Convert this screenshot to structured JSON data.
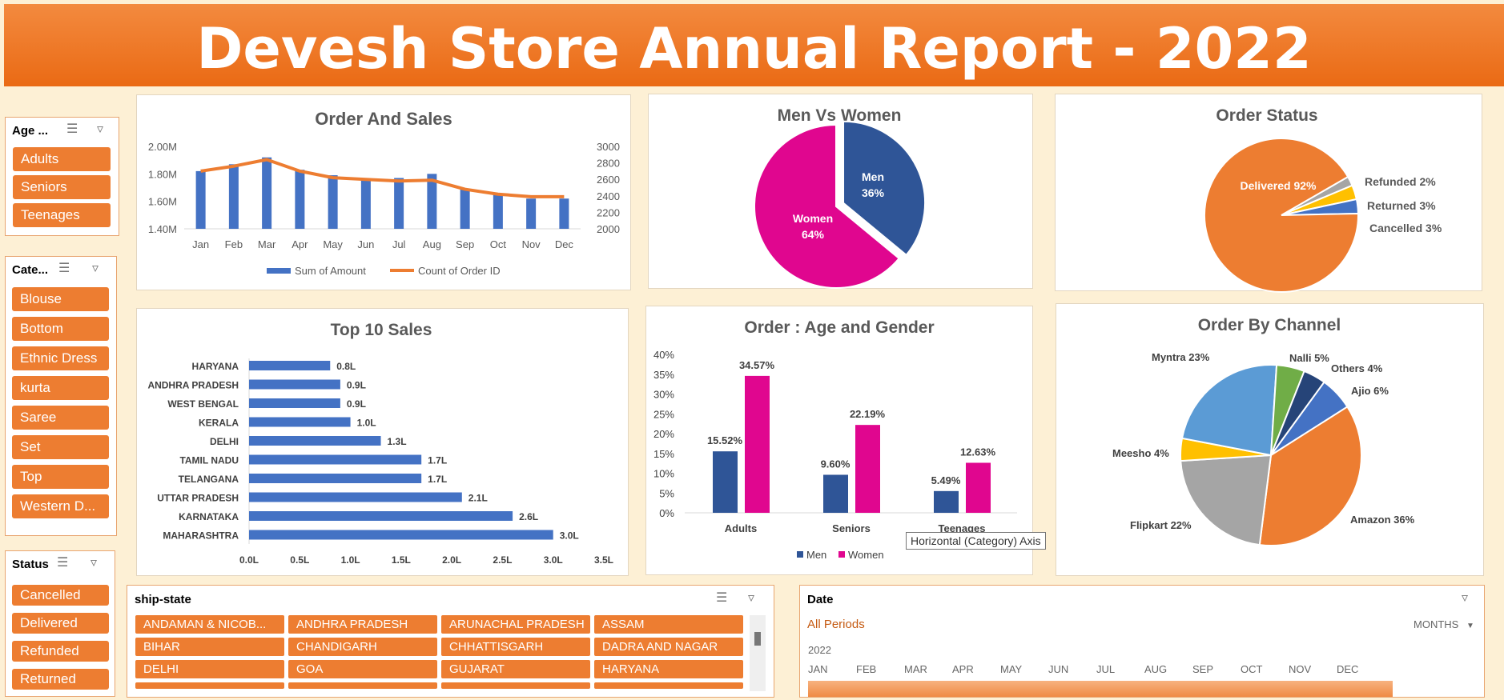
{
  "header": {
    "title": "Devesh Store Annual Report - 2022"
  },
  "slicers": {
    "age": {
      "title": "Age ...",
      "items": [
        "Adults",
        "Seniors",
        "Teenages"
      ]
    },
    "category": {
      "title": "Cate...",
      "items": [
        "Blouse",
        "Bottom",
        "Ethnic Dress",
        "kurta",
        "Saree",
        "Set",
        "Top",
        "Western D..."
      ]
    },
    "status": {
      "title": "Status",
      "items": [
        "Cancelled",
        "Delivered",
        "Refunded",
        "Returned"
      ]
    },
    "ship_state": {
      "title": "ship-state",
      "items": [
        "ANDAMAN & NICOB...",
        "ANDHRA PRADESH",
        "ARUNACHAL PRADESH",
        "ASSAM",
        "BIHAR",
        "CHANDIGARH",
        "CHHATTISGARH",
        "DADRA AND NAGAR",
        "DELHI",
        "GOA",
        "GUJARAT",
        "HARYANA"
      ]
    },
    "date": {
      "title": "Date",
      "periods": "All Periods",
      "level": "MONTHS",
      "year": "2022",
      "months": [
        "JAN",
        "FEB",
        "MAR",
        "APR",
        "MAY",
        "JUN",
        "JUL",
        "AUG",
        "SEP",
        "OCT",
        "NOV",
        "DEC"
      ]
    }
  },
  "tooltip": "Horizontal (Category) Axis",
  "chart_data": [
    {
      "type": "bar",
      "title": "Order And Sales",
      "categories": [
        "Jan",
        "Feb",
        "Mar",
        "Apr",
        "May",
        "Jun",
        "Jul",
        "Aug",
        "Sep",
        "Oct",
        "Nov",
        "Dec"
      ],
      "series": [
        {
          "name": "Sum of Amount",
          "type": "bar",
          "axis": "left",
          "values": [
            1820000,
            1870000,
            1920000,
            1830000,
            1790000,
            1760000,
            1770000,
            1800000,
            1690000,
            1650000,
            1620000,
            1620000
          ]
        },
        {
          "name": "Count of Order ID",
          "type": "line",
          "axis": "right",
          "values": [
            2700,
            2760,
            2840,
            2700,
            2620,
            2600,
            2580,
            2590,
            2480,
            2420,
            2390,
            2390
          ]
        }
      ],
      "yleft": {
        "ticks": [
          "1.40M",
          "1.60M",
          "1.80M",
          "2.00M"
        ],
        "range": [
          1400000,
          2000000
        ]
      },
      "yright": {
        "ticks": [
          "2000",
          "2200",
          "2400",
          "2600",
          "2800",
          "3000"
        ],
        "range": [
          2000,
          3000
        ]
      },
      "colors": {
        "bar": "#4472c4",
        "line": "#ed7d31"
      }
    },
    {
      "type": "pie",
      "title": "Men Vs Women",
      "labels": [
        "Men",
        "Women"
      ],
      "values": [
        36,
        64
      ],
      "display": [
        "Men\n36%",
        "Women\n64%"
      ],
      "colors": [
        "#2f5597",
        "#e0068f"
      ]
    },
    {
      "type": "pie",
      "title": "Order Status",
      "labels": [
        "Delivered",
        "Refunded",
        "Returned",
        "Cancelled"
      ],
      "values": [
        92,
        2,
        3,
        3
      ],
      "display": [
        "Delivered 92%",
        "Refunded 2%",
        "Returned 3%",
        "Cancelled 3%"
      ],
      "colors": [
        "#ed7d31",
        "#a5a5a5",
        "#ffc000",
        "#4472c4"
      ]
    },
    {
      "type": "bar",
      "orientation": "horizontal",
      "title": "Top 10 Sales",
      "categories": [
        "HARYANA",
        "ANDHRA PRADESH",
        "WEST BENGAL",
        "KERALA",
        "DELHI",
        "TAMIL NADU",
        "TELANGANA",
        "UTTAR PRADESH",
        "KARNATAKA",
        "MAHARASHTRA"
      ],
      "values": [
        0.8,
        0.9,
        0.9,
        1.0,
        1.3,
        1.7,
        1.7,
        2.1,
        2.6,
        3.0
      ],
      "labels": [
        "0.8L",
        "0.9L",
        "0.9L",
        "1.0L",
        "1.3L",
        "1.7L",
        "1.7L",
        "2.1L",
        "2.6L",
        "3.0L"
      ],
      "xticks": [
        "0.0L",
        "0.5L",
        "1.0L",
        "1.5L",
        "2.0L",
        "2.5L",
        "3.0L",
        "3.5L"
      ],
      "xlim": [
        0,
        3.5
      ],
      "color": "#4472c4"
    },
    {
      "type": "bar",
      "title": "Order : Age and Gender",
      "categories": [
        "Adults",
        "Seniors",
        "Teenages"
      ],
      "series": [
        {
          "name": "Men",
          "values": [
            15.52,
            9.6,
            5.49
          ],
          "labels": [
            "15.52%",
            "9.60%",
            "5.49%"
          ]
        },
        {
          "name": "Women",
          "values": [
            34.57,
            22.19,
            12.63
          ],
          "labels": [
            "34.57%",
            "22.19%",
            "12.63%"
          ]
        }
      ],
      "yticks": [
        "0%",
        "5%",
        "10%",
        "15%",
        "20%",
        "25%",
        "30%",
        "35%",
        "40%"
      ],
      "ylim": [
        0,
        40
      ],
      "colors": [
        "#2f5597",
        "#e0068f"
      ]
    },
    {
      "type": "pie",
      "title": "Order By Channel",
      "labels": [
        "Amazon",
        "Flipkart",
        "Meesho",
        "Myntra",
        "Nalli",
        "Others",
        "Ajio"
      ],
      "values": [
        36,
        22,
        4,
        23,
        5,
        4,
        6
      ],
      "display": [
        "Amazon 36%",
        "Flipkart 22%",
        "Meesho 4%",
        "Myntra 23%",
        "Nalli 5%",
        "Others 4%",
        "Ajio 6%"
      ],
      "colors": [
        "#ed7d31",
        "#a5a5a5",
        "#ffc000",
        "#5b9bd5",
        "#70ad47",
        "#264478",
        "#4472c4"
      ]
    }
  ]
}
